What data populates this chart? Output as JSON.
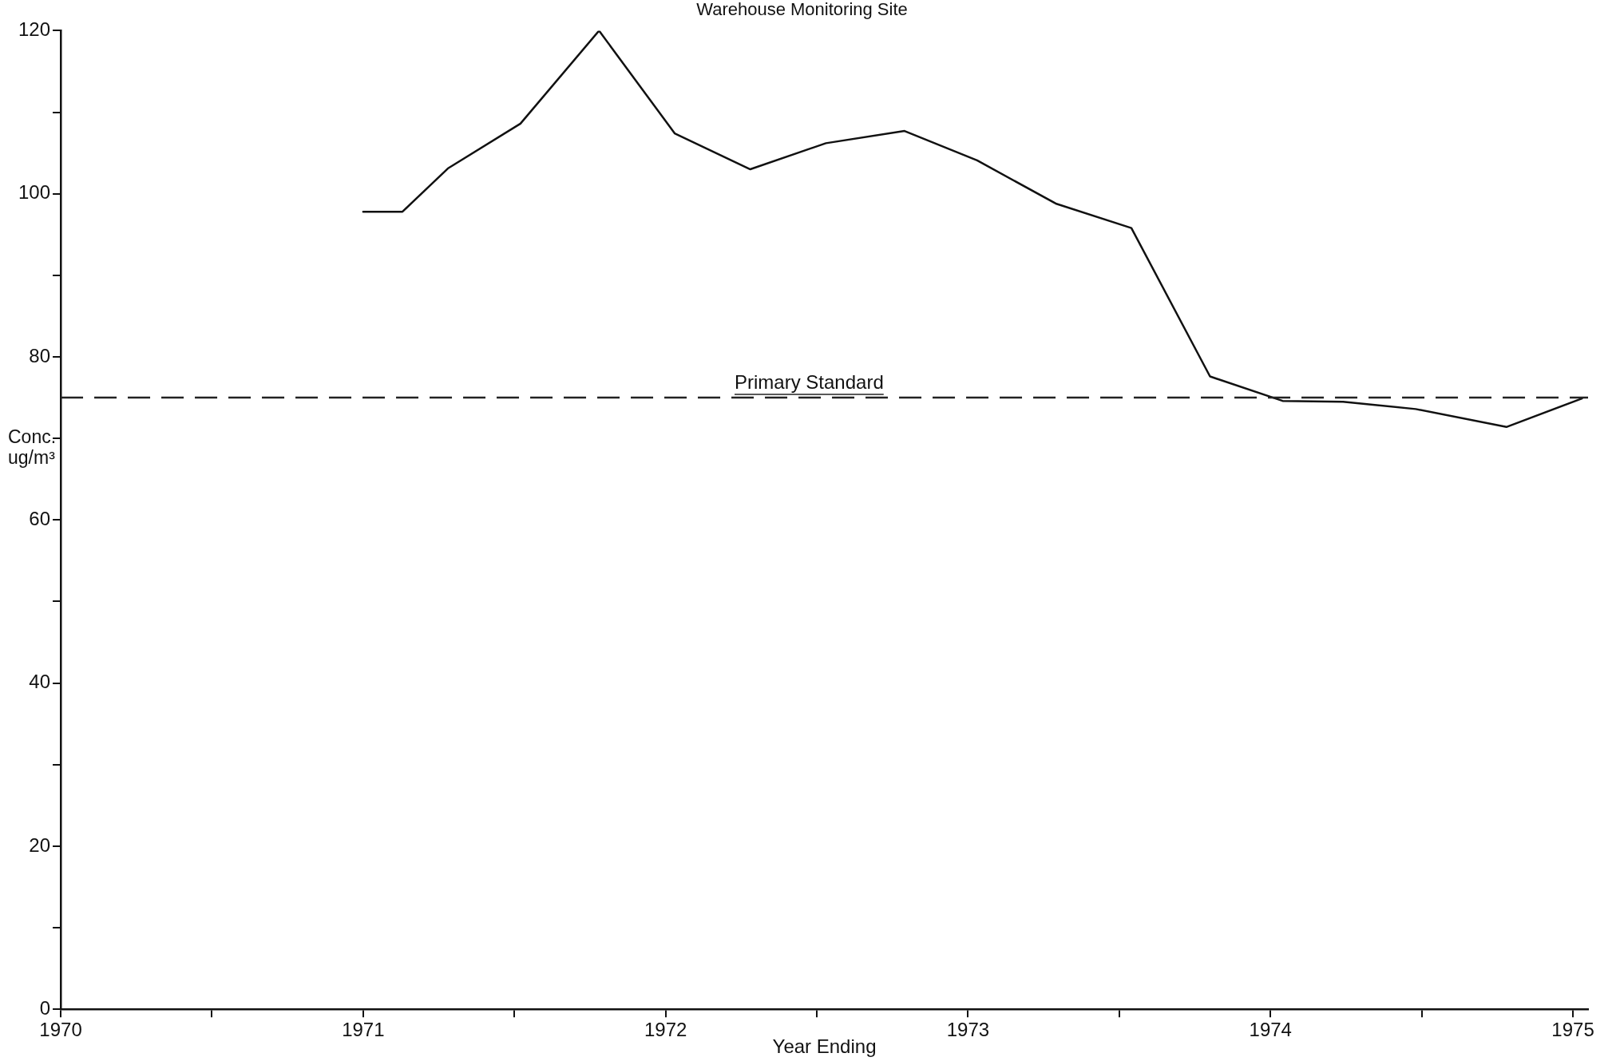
{
  "chart_data": {
    "type": "line",
    "title": "Warehouse Monitoring Site",
    "xlabel": "Year Ending",
    "ylabel": "Conc. ug/m³",
    "x": [
      1971.0,
      1971.13,
      1971.28,
      1971.52,
      1971.78,
      1972.03,
      1972.28,
      1972.53,
      1972.79,
      1973.03,
      1973.29,
      1973.54,
      1973.8,
      1974.04,
      1974.24,
      1974.48,
      1974.78,
      1975.03
    ],
    "series": [
      {
        "color": "#111111",
        "values": [
          97.8,
          97.8,
          103.1,
          108.6,
          120,
          107.4,
          103,
          106.2,
          107.7,
          104.1,
          98.8,
          95.8,
          77.6,
          74.6,
          74.5,
          73.6,
          71.4,
          74.9
        ]
      }
    ],
    "xlim": [
      1970,
      1975.05
    ],
    "xticks": [
      1970,
      {
        "value": 1970.5,
        "label": null
      },
      1971,
      {
        "value": 1971.5,
        "label": null
      },
      1972,
      {
        "value": 1972.5,
        "label": null
      },
      1973,
      {
        "value": 1973.5,
        "label": null
      },
      1974,
      {
        "value": 1974.5,
        "label": null
      },
      1975
    ],
    "ylim": [
      0,
      120
    ],
    "yticks": [
      0,
      {
        "value": 10,
        "label": null
      },
      20,
      {
        "value": 30,
        "label": null
      },
      40,
      {
        "value": 50,
        "label": null
      },
      60,
      {
        "value": 70,
        "label": null
      },
      80,
      {
        "value": 90,
        "label": null
      },
      100,
      {
        "value": 110,
        "label": null
      },
      120
    ],
    "ref_lines": [
      {
        "axis": "y",
        "value": 75,
        "label": "Primary Standard",
        "line_style": "dashed",
        "color": "#222222"
      }
    ],
    "grid": false,
    "legend": false,
    "marker": "none",
    "line_style": "solid"
  }
}
